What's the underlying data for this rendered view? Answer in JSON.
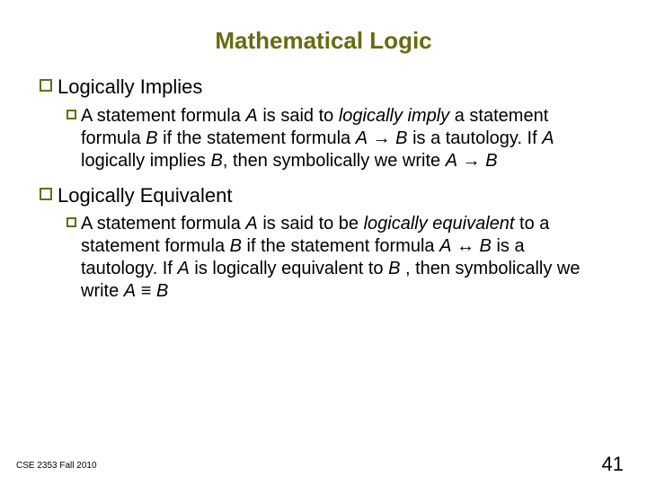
{
  "colors": {
    "title": "#6a6a12",
    "bullet": "#6a6a12",
    "text": "#000000",
    "footer": "#000000",
    "pagenum": "#000000"
  },
  "fonts": {
    "title_size": 26,
    "h1_size": 22,
    "h2_size": 20,
    "footer_size": 10,
    "pagenum_size": 22
  },
  "title": "Mathematical Logic",
  "sections": [
    {
      "heading": "Logically Implies",
      "body_parts": [
        {
          "t": "A statement formula "
        },
        {
          "t": "A",
          "i": true
        },
        {
          "t": " is said to "
        },
        {
          "t": "logically imply",
          "i": true
        },
        {
          "t": " a statement formula "
        },
        {
          "t": "B",
          "i": true
        },
        {
          "t": " if the statement formula "
        },
        {
          "t": "A",
          "i": true
        },
        {
          "t": " → "
        },
        {
          "t": "B",
          "i": true
        },
        {
          "t": " is a tautology. If "
        },
        {
          "t": "A",
          "i": true
        },
        {
          "t": " logically implies "
        },
        {
          "t": "B",
          "i": true
        },
        {
          "t": ", then symbolically we write "
        },
        {
          "t": "A",
          "i": true
        },
        {
          "t": " → "
        },
        {
          "t": "B",
          "i": true
        }
      ]
    },
    {
      "heading": "Logically Equivalent",
      "body_parts": [
        {
          "t": "A statement formula "
        },
        {
          "t": "A",
          "i": true
        },
        {
          "t": " is said to be "
        },
        {
          "t": "logically equivalent",
          "i": true
        },
        {
          "t": " to a statement formula "
        },
        {
          "t": "B",
          "i": true
        },
        {
          "t": " if the statement formula "
        },
        {
          "t": "A",
          "i": true
        },
        {
          "t": " ↔ "
        },
        {
          "t": "B",
          "i": true
        },
        {
          "t": " is a tautology.  If "
        },
        {
          "t": "A",
          "i": true
        },
        {
          "t": " is logically equivalent to "
        },
        {
          "t": "B",
          "i": true
        },
        {
          "t": " , then symbolically we write "
        },
        {
          "t": "A",
          "i": true
        },
        {
          "t": " ≡ "
        },
        {
          "t": "B",
          "i": true
        }
      ]
    }
  ],
  "footer": "CSE 2353 Fall 2010",
  "page_number": "41"
}
